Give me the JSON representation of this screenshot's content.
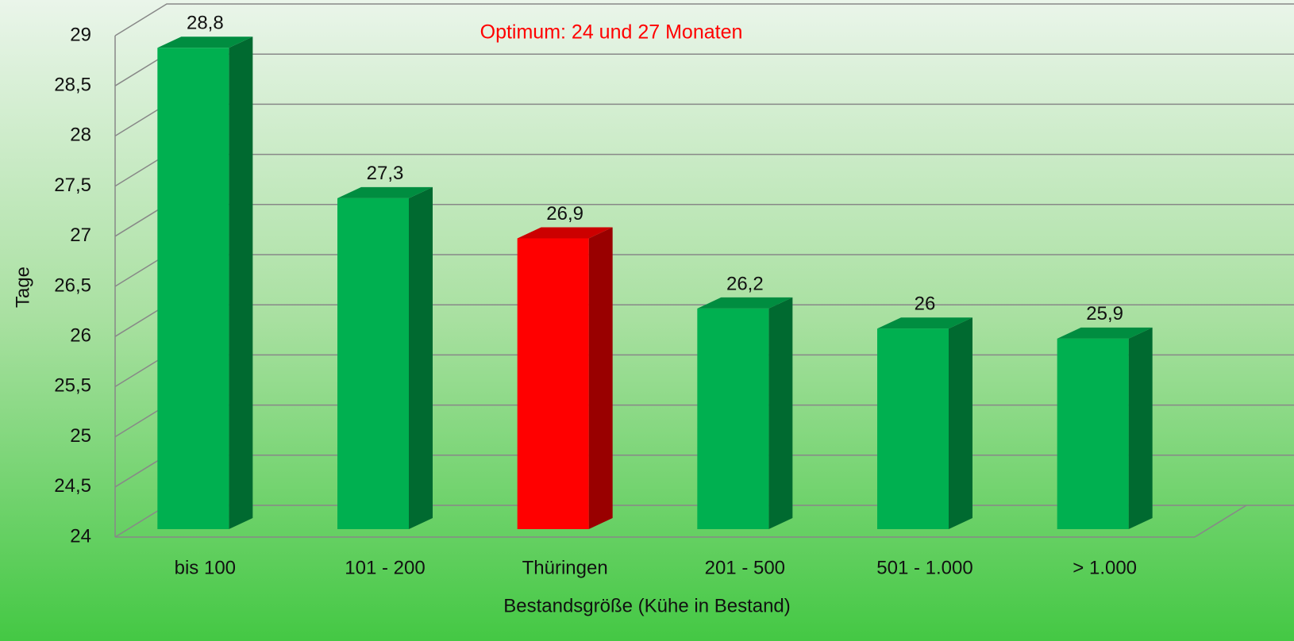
{
  "chart_data": {
    "type": "bar",
    "annotation": "Optimum: 24 und 27 Monaten",
    "ylabel": "Tage",
    "xlabel": "Bestandsgröße (Kühe in Bestand)",
    "categories": [
      "bis 100",
      "101 - 200",
      "Thüringen",
      "201 - 500",
      "501 - 1.000",
      "> 1.000"
    ],
    "values": [
      28.8,
      27.3,
      26.9,
      26.2,
      26,
      25.9
    ],
    "value_labels": [
      "28,8",
      "27,3",
      "26,9",
      "26,2",
      "26",
      "25,9"
    ],
    "colors": [
      "#00b050",
      "#00b050",
      "#ff0000",
      "#00b050",
      "#00b050",
      "#00b050"
    ],
    "ylim": [
      24,
      29
    ],
    "yticks": [
      24,
      {
        "value": 24.5,
        "label": "24,5"
      },
      25,
      {
        "value": 25.5,
        "label": "25,5"
      },
      26,
      {
        "value": 26.5,
        "label": "26,5"
      },
      27,
      {
        "value": 27.5,
        "label": "27,5"
      },
      28,
      {
        "value": 28.5,
        "label": "28,5"
      },
      29
    ],
    "grid": true
  }
}
